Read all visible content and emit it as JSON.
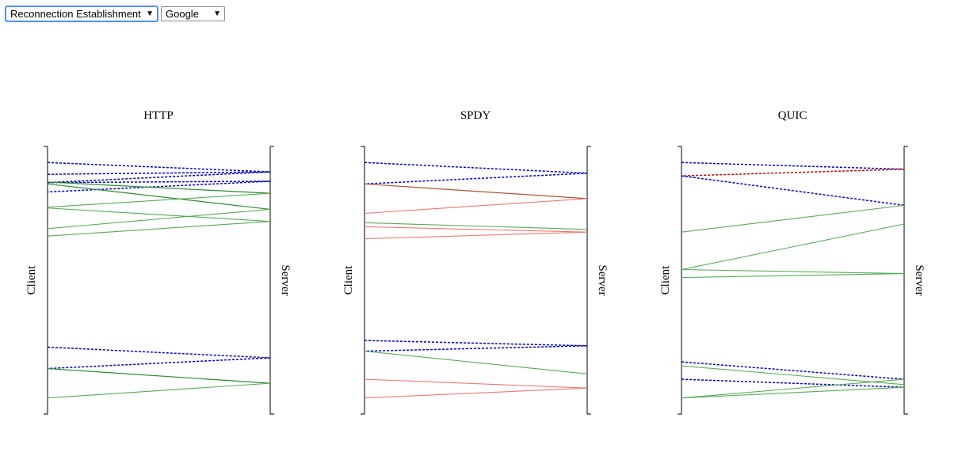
{
  "controls": {
    "scenario": {
      "value": "Reconnection Establishment"
    },
    "site": {
      "value": "Google"
    }
  },
  "colors": {
    "control": "#0000cc",
    "data": "#5aaa5a",
    "data_dark": "#2e8b2e",
    "loss": "#ee7777",
    "loss_dark": "#aa5533",
    "control_red": "#cc0000"
  },
  "panels": [
    {
      "title": "HTTP",
      "left_label": "Client",
      "right_label": "Server",
      "messages": [
        {
          "from": "client",
          "t0": 0.06,
          "t1": 0.095,
          "kind": "control"
        },
        {
          "from": "client",
          "t0": 0.104,
          "t1": 0.095,
          "kind": "control"
        },
        {
          "from": "client",
          "t0": 0.135,
          "t1": 0.13,
          "kind": "control"
        },
        {
          "from": "server",
          "t0": 0.095,
          "t1": 0.135,
          "kind": "control"
        },
        {
          "from": "server",
          "t0": 0.13,
          "t1": 0.17,
          "kind": "control"
        },
        {
          "from": "client",
          "t0": 0.133,
          "t1": 0.175,
          "kind": "data_dark"
        },
        {
          "from": "client",
          "t0": 0.14,
          "t1": 0.235,
          "kind": "data_dark"
        },
        {
          "from": "server",
          "t0": 0.175,
          "t1": 0.227,
          "kind": "data"
        },
        {
          "from": "client",
          "t0": 0.23,
          "t1": 0.28,
          "kind": "data"
        },
        {
          "from": "server",
          "t0": 0.235,
          "t1": 0.307,
          "kind": "data"
        },
        {
          "from": "server",
          "t0": 0.28,
          "t1": 0.335,
          "kind": "data"
        },
        {
          "from": "client",
          "t0": 0.75,
          "t1": 0.79,
          "kind": "control"
        },
        {
          "from": "server",
          "t0": 0.79,
          "t1": 0.83,
          "kind": "control"
        },
        {
          "from": "client",
          "t0": 0.83,
          "t1": 0.885,
          "kind": "data_dark"
        },
        {
          "from": "server",
          "t0": 0.885,
          "t1": 0.94,
          "kind": "data"
        }
      ]
    },
    {
      "title": "SPDY",
      "left_label": "Client",
      "right_label": "Server",
      "messages": [
        {
          "from": "client",
          "t0": 0.06,
          "t1": 0.1,
          "kind": "control"
        },
        {
          "from": "server",
          "t0": 0.1,
          "t1": 0.14,
          "kind": "control"
        },
        {
          "from": "client",
          "t0": 0.14,
          "t1": 0.195,
          "kind": "loss_dark"
        },
        {
          "from": "server",
          "t0": 0.195,
          "t1": 0.25,
          "kind": "loss"
        },
        {
          "from": "client",
          "t0": 0.285,
          "t1": 0.31,
          "kind": "data"
        },
        {
          "from": "client",
          "t0": 0.3,
          "t1": 0.32,
          "kind": "loss"
        },
        {
          "from": "server",
          "t0": 0.32,
          "t1": 0.345,
          "kind": "loss"
        },
        {
          "from": "client",
          "t0": 0.725,
          "t1": 0.745,
          "kind": "control"
        },
        {
          "from": "server",
          "t0": 0.745,
          "t1": 0.765,
          "kind": "control"
        },
        {
          "from": "client",
          "t0": 0.765,
          "t1": 0.85,
          "kind": "data"
        },
        {
          "from": "client",
          "t0": 0.87,
          "t1": 0.903,
          "kind": "loss"
        },
        {
          "from": "server",
          "t0": 0.903,
          "t1": 0.94,
          "kind": "loss"
        }
      ]
    },
    {
      "title": "QUIC",
      "left_label": "Client",
      "right_label": "Server",
      "messages": [
        {
          "from": "client",
          "t0": 0.06,
          "t1": 0.085,
          "kind": "control"
        },
        {
          "from": "server",
          "t0": 0.085,
          "t1": 0.11,
          "kind": "control_red"
        },
        {
          "from": "client",
          "t0": 0.11,
          "t1": 0.22,
          "kind": "control"
        },
        {
          "from": "server",
          "t0": 0.22,
          "t1": 0.32,
          "kind": "data"
        },
        {
          "from": "server",
          "t0": 0.29,
          "t1": 0.46,
          "kind": "data"
        },
        {
          "from": "client",
          "t0": 0.46,
          "t1": 0.475,
          "kind": "data"
        },
        {
          "from": "server",
          "t0": 0.475,
          "t1": 0.49,
          "kind": "data"
        },
        {
          "from": "client",
          "t0": 0.805,
          "t1": 0.87,
          "kind": "control"
        },
        {
          "from": "client",
          "t0": 0.82,
          "t1": 0.89,
          "kind": "data"
        },
        {
          "from": "client",
          "t0": 0.87,
          "t1": 0.9,
          "kind": "control"
        },
        {
          "from": "server",
          "t0": 0.87,
          "t1": 0.94,
          "kind": "data"
        },
        {
          "from": "server",
          "t0": 0.9,
          "t1": 0.94,
          "kind": "data"
        }
      ]
    }
  ]
}
